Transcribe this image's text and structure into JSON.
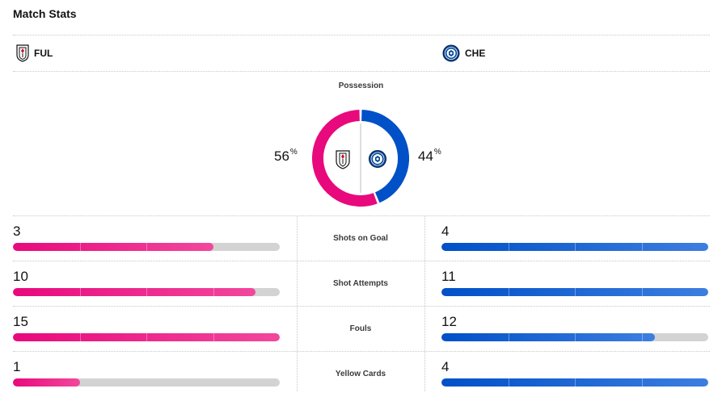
{
  "header": {
    "title": "Match Stats"
  },
  "teams": {
    "home": {
      "abbr": "FUL",
      "color": "#e8097d"
    },
    "away": {
      "abbr": "CHE",
      "color": "#0050c8"
    }
  },
  "possession": {
    "label": "Possession",
    "home_value": "56",
    "away_value": "44",
    "unit": "%",
    "home_fraction": 0.56,
    "away_fraction": 0.44
  },
  "stats": [
    {
      "label": "Shots on Goal",
      "home": "3",
      "away": "4",
      "home_fill": 0.75,
      "away_fill": 1.0
    },
    {
      "label": "Shot Attempts",
      "home": "10",
      "away": "11",
      "home_fill": 0.91,
      "away_fill": 1.0
    },
    {
      "label": "Fouls",
      "home": "15",
      "away": "12",
      "home_fill": 1.0,
      "away_fill": 0.8
    },
    {
      "label": "Yellow Cards",
      "home": "1",
      "away": "4",
      "home_fill": 0.25,
      "away_fill": 1.0
    }
  ],
  "icons": {
    "home_crest": "fulham-crest-icon",
    "away_crest": "chelsea-crest-icon"
  }
}
